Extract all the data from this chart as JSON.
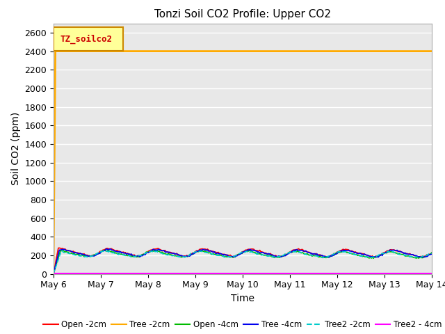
{
  "title": "Tonzi Soil CO2 Profile: Upper CO2",
  "ylabel": "Soil CO2 (ppm)",
  "xlabel": "Time",
  "ylim": [
    0,
    2700
  ],
  "yticks": [
    0,
    200,
    400,
    600,
    800,
    1000,
    1200,
    1400,
    1600,
    1800,
    2000,
    2200,
    2400,
    2600
  ],
  "xtick_labels": [
    "May 6",
    "May 7",
    "May 8",
    "May 9",
    "May 10",
    "May 11",
    "May 12",
    "May 13",
    "May 14"
  ],
  "legend_label": "TZ_soilco2",
  "legend_box_facecolor": "#ffff99",
  "legend_box_edgecolor": "#cc8800",
  "plot_bg_color": "#e8e8e8",
  "grid_color": "#ffffff",
  "series": [
    {
      "label": "Open -2cm",
      "color": "#ff0000",
      "style": "-",
      "lw": 1.2,
      "base": 235,
      "amp": 35,
      "phase": 0.2,
      "trend": -15,
      "ramp_pts": 6
    },
    {
      "label": "Tree -2cm",
      "color": "#ffaa00",
      "style": "-",
      "lw": 2.0,
      "flat": 2400,
      "spike_pts": 3
    },
    {
      "label": "Open -4cm",
      "color": "#00bb00",
      "style": "-",
      "lw": 1.2,
      "base": 220,
      "amp": 30,
      "phase": 0.5,
      "trend": -18,
      "ramp_pts": 8
    },
    {
      "label": "Tree -4cm",
      "color": "#0000ee",
      "style": "-",
      "lw": 1.2,
      "base": 228,
      "amp": 33,
      "phase": 0.1,
      "trend": -12,
      "ramp_pts": 7
    },
    {
      "label": "Tree2 -2cm",
      "color": "#00cccc",
      "style": "--",
      "lw": 1.2,
      "base": 215,
      "amp": 28,
      "phase": 0.7,
      "trend": -10,
      "ramp_pts": 9
    },
    {
      "label": "Tree2 - 4cm",
      "color": "#ff00ff",
      "style": "-",
      "lw": 1.5,
      "flat": 2.0
    }
  ]
}
